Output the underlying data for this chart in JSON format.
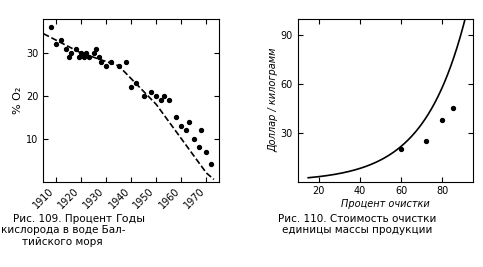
{
  "chart1": {
    "title": "",
    "ylabel": "% O₂",
    "xlabel": "Годы",
    "xlim": [
      1905,
      1975
    ],
    "ylim": [
      0,
      38
    ],
    "xticks": [
      1910,
      1920,
      1930,
      1940,
      1950,
      1960,
      1970
    ],
    "yticks": [
      10,
      20,
      30
    ],
    "scatter_x": [
      1908,
      1910,
      1912,
      1914,
      1915,
      1916,
      1918,
      1919,
      1920,
      1921,
      1922,
      1923,
      1925,
      1926,
      1927,
      1928,
      1930,
      1932,
      1935,
      1938,
      1940,
      1942,
      1945,
      1948,
      1950,
      1952,
      1953,
      1955,
      1958,
      1960,
      1962,
      1963,
      1965,
      1967,
      1968,
      1970,
      1972
    ],
    "scatter_y": [
      36,
      32,
      33,
      31,
      29,
      30,
      31,
      29,
      30,
      29,
      30,
      29,
      30,
      31,
      29,
      28,
      27,
      28,
      27,
      28,
      22,
      23,
      20,
      21,
      20,
      19,
      20,
      19,
      15,
      13,
      12,
      14,
      10,
      8,
      12,
      7,
      4
    ],
    "curve_x": [
      1905,
      1910,
      1915,
      1920,
      1925,
      1930,
      1935,
      1940,
      1945,
      1950,
      1955,
      1960,
      1965,
      1970,
      1973
    ],
    "curve_y": [
      34.5,
      33,
      31.5,
      30,
      29,
      28,
      27,
      24,
      21,
      18,
      14,
      10,
      6,
      2,
      0.5
    ],
    "caption": "Рис. 109. Процент кислорода в воде Бал-\nтийского моря"
  },
  "chart2": {
    "title": "",
    "ylabel": "Доллар / килограмм",
    "xlabel": "Процент очистки",
    "xlim": [
      10,
      95
    ],
    "ylim": [
      0,
      100
    ],
    "xticks": [
      20,
      40,
      60,
      80
    ],
    "yticks": [
      30,
      60,
      90
    ],
    "scatter_x": [
      60,
      72,
      80,
      85
    ],
    "scatter_y": [
      20,
      25,
      38,
      45
    ],
    "curve_x_start": 15,
    "curve_x_end": 92,
    "caption": "Рис. 110. Стоимость очистки\nединицы массы продукции"
  },
  "bg_color": "#f5f5f0",
  "line_color": "#000000",
  "dot_color": "#000000",
  "caption_fontsize": 7.5,
  "tick_fontsize": 7,
  "label_fontsize": 8
}
